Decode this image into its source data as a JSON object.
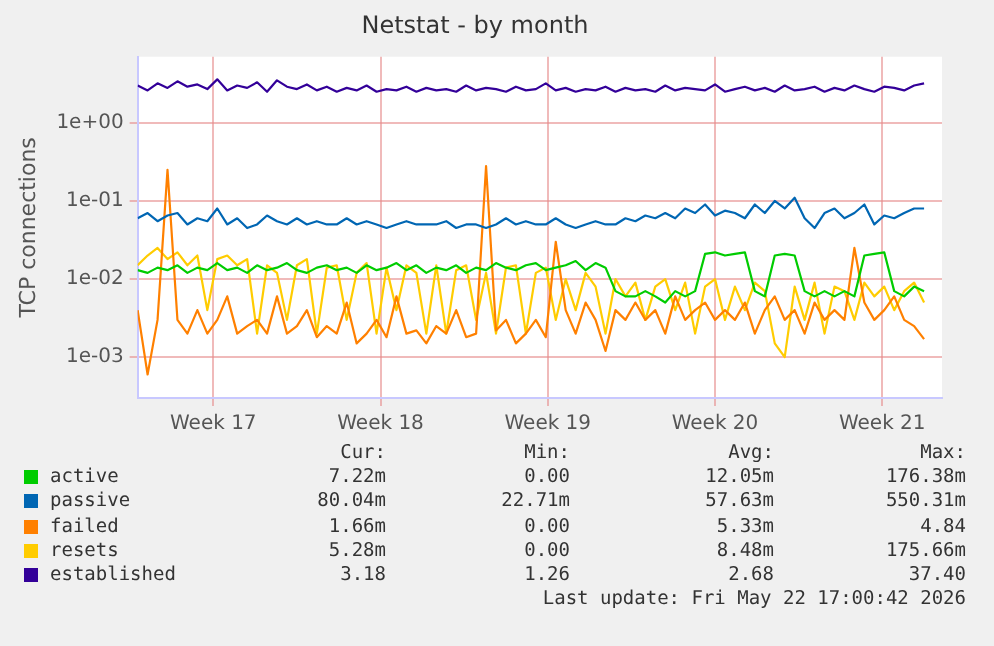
{
  "chart_data": {
    "type": "line",
    "title": "Netstat - by month",
    "ylabel": "TCP connections",
    "log": "y",
    "grid": true,
    "legend": "bottom",
    "marker": "none",
    "line_style": "solid",
    "ylim": [
      0.0003,
      7
    ],
    "yticks": [
      {
        "value": 1,
        "label": "1e+00"
      },
      {
        "value": 0.1,
        "label": "1e-01"
      },
      {
        "value": 0.01,
        "label": "1e-02"
      },
      {
        "value": 0.001,
        "label": "1e-03"
      }
    ],
    "xlim": [
      "2026-04-20T08:00",
      "2026-05-24T00:00"
    ],
    "xticks": [
      {
        "value": "2026-04-23T12:00",
        "label": "Week 17"
      },
      {
        "value": "2026-04-30T12:00",
        "label": "Week 18"
      },
      {
        "value": "2026-05-07T12:00",
        "label": "Week 19"
      },
      {
        "value": "2026-05-14T12:00",
        "label": "Week 20"
      },
      {
        "value": "2026-05-21T12:00",
        "label": "Week 21"
      }
    ],
    "x": [
      "2026-04-20T08:00",
      "2026-04-20T18:00",
      "2026-04-21T04:00",
      "2026-04-21T14:00",
      "2026-04-22T00:00",
      "2026-04-22T10:00",
      "2026-04-22T20:00",
      "2026-04-23T06:00",
      "2026-04-23T16:00",
      "2026-04-24T02:00",
      "2026-04-24T12:00",
      "2026-04-24T22:00",
      "2026-04-25T08:00",
      "2026-04-25T18:00",
      "2026-04-26T04:00",
      "2026-04-26T14:00",
      "2026-04-27T00:00",
      "2026-04-27T10:00",
      "2026-04-27T20:00",
      "2026-04-28T06:00",
      "2026-04-28T16:00",
      "2026-04-29T02:00",
      "2026-04-29T12:00",
      "2026-04-29T22:00",
      "2026-04-30T08:00",
      "2026-04-30T18:00",
      "2026-05-01T04:00",
      "2026-05-01T14:00",
      "2026-05-02T00:00",
      "2026-05-02T10:00",
      "2026-05-02T20:00",
      "2026-05-03T06:00",
      "2026-05-03T16:00",
      "2026-05-04T02:00",
      "2026-05-04T12:00",
      "2026-05-04T22:00",
      "2026-05-05T08:00",
      "2026-05-05T18:00",
      "2026-05-06T04:00",
      "2026-05-06T14:00",
      "2026-05-07T00:00",
      "2026-05-07T10:00",
      "2026-05-07T20:00",
      "2026-05-08T06:00",
      "2026-05-08T16:00",
      "2026-05-09T02:00",
      "2026-05-09T12:00",
      "2026-05-09T22:00",
      "2026-05-10T08:00",
      "2026-05-10T18:00",
      "2026-05-11T04:00",
      "2026-05-11T14:00",
      "2026-05-12T00:00",
      "2026-05-12T10:00",
      "2026-05-12T20:00",
      "2026-05-13T06:00",
      "2026-05-13T16:00",
      "2026-05-14T02:00",
      "2026-05-14T12:00",
      "2026-05-14T22:00",
      "2026-05-15T08:00",
      "2026-05-15T18:00",
      "2026-05-16T04:00",
      "2026-05-16T14:00",
      "2026-05-17T00:00",
      "2026-05-17T10:00",
      "2026-05-17T20:00",
      "2026-05-18T06:00",
      "2026-05-18T16:00",
      "2026-05-19T02:00",
      "2026-05-19T12:00",
      "2026-05-19T22:00",
      "2026-05-20T08:00",
      "2026-05-20T18:00",
      "2026-05-21T04:00",
      "2026-05-21T14:00",
      "2026-05-22T00:00",
      "2026-05-22T10:00",
      "2026-05-22T20:00",
      "2026-05-23T06:00"
    ],
    "series": [
      {
        "name": "active",
        "color": "#00cc00",
        "values": [
          0.013,
          0.012,
          0.014,
          0.013,
          0.015,
          0.012,
          0.014,
          0.013,
          0.016,
          0.013,
          0.014,
          0.012,
          0.015,
          0.013,
          0.014,
          0.016,
          0.013,
          0.012,
          0.014,
          0.015,
          0.013,
          0.014,
          0.012,
          0.015,
          0.013,
          0.014,
          0.016,
          0.013,
          0.015,
          0.012,
          0.014,
          0.013,
          0.015,
          0.012,
          0.014,
          0.013,
          0.016,
          0.014,
          0.013,
          0.015,
          0.016,
          0.013,
          0.014,
          0.015,
          0.017,
          0.013,
          0.016,
          0.014,
          0.007,
          0.006,
          0.006,
          0.007,
          0.006,
          0.005,
          0.007,
          0.006,
          0.007,
          0.021,
          0.022,
          0.02,
          0.021,
          0.022,
          0.007,
          0.006,
          0.02,
          0.021,
          0.02,
          0.007,
          0.006,
          0.007,
          0.006,
          0.007,
          0.006,
          0.02,
          0.021,
          0.022,
          0.007,
          0.006,
          0.008,
          0.007
        ]
      },
      {
        "name": "passive",
        "color": "#0066b3",
        "values": [
          0.06,
          0.07,
          0.055,
          0.065,
          0.07,
          0.05,
          0.06,
          0.055,
          0.08,
          0.05,
          0.06,
          0.045,
          0.05,
          0.065,
          0.055,
          0.05,
          0.06,
          0.05,
          0.055,
          0.05,
          0.05,
          0.06,
          0.05,
          0.055,
          0.05,
          0.045,
          0.05,
          0.055,
          0.05,
          0.05,
          0.05,
          0.055,
          0.045,
          0.05,
          0.05,
          0.045,
          0.05,
          0.06,
          0.05,
          0.055,
          0.05,
          0.05,
          0.06,
          0.05,
          0.045,
          0.05,
          0.055,
          0.05,
          0.05,
          0.06,
          0.055,
          0.065,
          0.06,
          0.07,
          0.06,
          0.08,
          0.07,
          0.09,
          0.065,
          0.075,
          0.07,
          0.06,
          0.09,
          0.07,
          0.1,
          0.08,
          0.11,
          0.06,
          0.045,
          0.07,
          0.08,
          0.06,
          0.07,
          0.09,
          0.05,
          0.065,
          0.06,
          0.07,
          0.08,
          0.08
        ]
      },
      {
        "name": "failed",
        "color": "#ff8000",
        "values": [
          0.004,
          0.0006,
          0.003,
          0.25,
          0.003,
          0.002,
          0.004,
          0.002,
          0.003,
          0.006,
          0.002,
          0.0025,
          0.003,
          0.002,
          0.006,
          0.002,
          0.0025,
          0.004,
          0.0018,
          0.0025,
          0.002,
          0.005,
          0.0015,
          0.002,
          0.003,
          0.0018,
          0.006,
          0.002,
          0.0022,
          0.0015,
          0.0025,
          0.002,
          0.004,
          0.0018,
          0.002,
          0.28,
          0.0022,
          0.003,
          0.0015,
          0.002,
          0.003,
          0.0018,
          0.03,
          0.004,
          0.002,
          0.005,
          0.003,
          0.0012,
          0.004,
          0.003,
          0.005,
          0.003,
          0.004,
          0.002,
          0.006,
          0.003,
          0.004,
          0.005,
          0.003,
          0.004,
          0.003,
          0.005,
          0.002,
          0.004,
          0.006,
          0.003,
          0.004,
          0.002,
          0.005,
          0.003,
          0.004,
          0.003,
          0.025,
          0.005,
          0.003,
          0.004,
          0.006,
          0.003,
          0.0025,
          0.0017
        ]
      },
      {
        "name": "resets",
        "color": "#ffcc00",
        "values": [
          0.015,
          0.02,
          0.025,
          0.018,
          0.022,
          0.015,
          0.02,
          0.004,
          0.018,
          0.02,
          0.015,
          0.018,
          0.002,
          0.015,
          0.012,
          0.003,
          0.015,
          0.018,
          0.002,
          0.014,
          0.015,
          0.003,
          0.012,
          0.016,
          0.002,
          0.014,
          0.004,
          0.015,
          0.012,
          0.002,
          0.015,
          0.002,
          0.013,
          0.015,
          0.003,
          0.012,
          0.002,
          0.014,
          0.015,
          0.002,
          0.012,
          0.014,
          0.003,
          0.01,
          0.004,
          0.012,
          0.008,
          0.002,
          0.01,
          0.006,
          0.009,
          0.003,
          0.008,
          0.01,
          0.004,
          0.009,
          0.002,
          0.008,
          0.01,
          0.003,
          0.008,
          0.004,
          0.009,
          0.007,
          0.0015,
          0.001,
          0.008,
          0.003,
          0.009,
          0.002,
          0.008,
          0.007,
          0.003,
          0.009,
          0.006,
          0.008,
          0.004,
          0.007,
          0.009,
          0.005
        ]
      },
      {
        "name": "established",
        "color": "#330099",
        "values": [
          3.0,
          2.6,
          3.2,
          2.8,
          3.4,
          2.9,
          3.1,
          2.7,
          3.6,
          2.6,
          3.0,
          2.8,
          3.3,
          2.5,
          3.5,
          2.9,
          2.7,
          3.1,
          2.6,
          2.9,
          2.5,
          2.8,
          2.6,
          3.0,
          2.5,
          2.7,
          2.6,
          2.9,
          2.5,
          2.8,
          2.6,
          2.7,
          2.5,
          3.0,
          2.6,
          2.8,
          2.7,
          2.5,
          2.9,
          2.6,
          2.7,
          3.2,
          2.6,
          2.8,
          2.5,
          2.7,
          2.6,
          2.9,
          2.5,
          2.8,
          2.6,
          2.7,
          2.5,
          3.0,
          2.6,
          2.8,
          2.7,
          2.6,
          3.1,
          2.5,
          2.7,
          2.9,
          2.6,
          2.8,
          2.5,
          3.0,
          2.6,
          2.7,
          2.9,
          2.5,
          2.8,
          2.6,
          3.0,
          2.7,
          2.5,
          2.9,
          2.8,
          2.6,
          3.0,
          3.2
        ]
      }
    ],
    "annotations": [
      "Cur:",
      "Min:",
      "Avg:",
      "Max:",
      "7.22m",
      "0.00",
      "12.05m",
      "176.38m",
      "80.04m",
      "22.71m",
      "57.63m",
      "550.31m",
      "1.66m",
      "0.00",
      "5.33m",
      "4.84",
      "5.28m",
      "0.00",
      "8.48m",
      "175.66m",
      "3.18",
      "1.26",
      "2.68",
      "37.40",
      "Last update: Fri May 22 17:00:42 2026"
    ]
  }
}
